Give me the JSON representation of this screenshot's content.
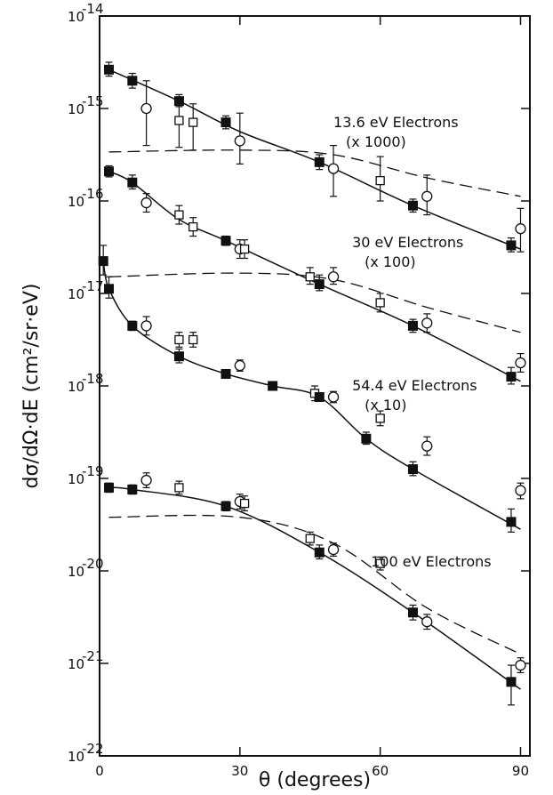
{
  "chart_data": {
    "type": "scatter",
    "xlabel": "θ (degrees)",
    "ylabel": "dσ/dΩ·dE (cm²/sr·eV)",
    "xlim": [
      0,
      92
    ],
    "ylim_exponent": [
      -22,
      -14
    ],
    "log_y": true,
    "grid": false,
    "x_ticks": [
      {
        "value": 0,
        "label": "0"
      },
      {
        "value": 30,
        "label": "30"
      },
      {
        "value": 60,
        "label": "60"
      },
      {
        "value": 90,
        "label": "90"
      }
    ],
    "y_ticks": [
      {
        "exp": -14,
        "base": "10",
        "sup": "-14"
      },
      {
        "exp": -15,
        "base": "10",
        "sup": "-15"
      },
      {
        "exp": -16,
        "base": "10",
        "sup": "-16"
      },
      {
        "exp": -17,
        "base": "10",
        "sup": "-17"
      },
      {
        "exp": -18,
        "base": "10",
        "sup": "-18"
      },
      {
        "exp": -19,
        "base": "10",
        "sup": "-19"
      },
      {
        "exp": -20,
        "base": "10",
        "sup": "-20"
      },
      {
        "exp": -21,
        "base": "10",
        "sup": "-21"
      },
      {
        "exp": -22,
        "base": "10",
        "sup": "-22"
      }
    ],
    "series": [
      {
        "label_lines": [
          "13.6 eV Electrons",
          "(x 1000)"
        ],
        "label_at": {
          "theta": 50,
          "exp": -15.2
        },
        "filled_squares": [
          {
            "x": 2,
            "y": -14.58,
            "lo": -14.65,
            "hi": -14.5
          },
          {
            "x": 7,
            "y": -14.7,
            "lo": -14.78,
            "hi": -14.62
          },
          {
            "x": 17,
            "y": -14.92,
            "lo": -14.98,
            "hi": -14.85
          },
          {
            "x": 27,
            "y": -15.15,
            "lo": -15.22,
            "hi": -15.08
          },
          {
            "x": 47,
            "y": -15.58,
            "lo": -15.66,
            "hi": -15.5
          },
          {
            "x": 67,
            "y": -16.05,
            "lo": -16.12,
            "hi": -15.98
          },
          {
            "x": 88,
            "y": -16.48,
            "lo": -16.55,
            "hi": -16.4
          }
        ],
        "open_circles": [
          {
            "x": 10,
            "y": -15.0,
            "lo": -15.4,
            "hi": -14.7
          },
          {
            "x": 30,
            "y": -15.35,
            "lo": -15.6,
            "hi": -15.05
          },
          {
            "x": 50,
            "y": -15.65,
            "lo": -15.95,
            "hi": -15.4
          },
          {
            "x": 70,
            "y": -15.95,
            "lo": -16.15,
            "hi": -15.72
          },
          {
            "x": 90,
            "y": -16.3,
            "lo": -16.55,
            "hi": -16.08
          }
        ],
        "open_squares": [
          {
            "x": 17,
            "y": -15.13,
            "lo": -15.42,
            "hi": -14.95
          },
          {
            "x": 20,
            "y": -15.15,
            "lo": -15.45,
            "hi": -14.95
          },
          {
            "x": 60,
            "y": -15.78,
            "lo": -16.0,
            "hi": -15.52
          }
        ],
        "fit_curve": [
          {
            "x": 2,
            "y": -14.58
          },
          {
            "x": 17,
            "y": -14.92
          },
          {
            "x": 30,
            "y": -15.25
          },
          {
            "x": 47,
            "y": -15.58
          },
          {
            "x": 67,
            "y": -16.05
          },
          {
            "x": 90,
            "y": -16.52
          }
        ],
        "theory_curve": [
          {
            "x": 2,
            "y": -15.47
          },
          {
            "x": 30,
            "y": -15.45
          },
          {
            "x": 50,
            "y": -15.5
          },
          {
            "x": 70,
            "y": -15.75
          },
          {
            "x": 90,
            "y": -15.95
          }
        ]
      },
      {
        "label_lines": [
          "30 eV Electrons",
          "(x 100)"
        ],
        "label_at": {
          "theta": 54,
          "exp": -16.5
        },
        "filled_squares": [
          {
            "x": 2,
            "y": -15.68,
            "lo": -15.74,
            "hi": -15.62
          },
          {
            "x": 7,
            "y": -15.8,
            "lo": -15.87,
            "hi": -15.72
          },
          {
            "x": 27,
            "y": -16.43,
            "lo": -16.48,
            "hi": -16.38
          },
          {
            "x": 47,
            "y": -16.9,
            "lo": -16.97,
            "hi": -16.8
          },
          {
            "x": 67,
            "y": -17.35,
            "lo": -17.42,
            "hi": -17.28
          },
          {
            "x": 88,
            "y": -17.9,
            "lo": -17.98,
            "hi": -17.8
          }
        ],
        "open_circles": [
          {
            "x": 10,
            "y": -16.02,
            "lo": -16.12,
            "hi": -15.92
          },
          {
            "x": 30,
            "y": -16.52,
            "lo": -16.62,
            "hi": -16.42
          },
          {
            "x": 50,
            "y": -16.82,
            "lo": -16.9,
            "hi": -16.72
          },
          {
            "x": 70,
            "y": -17.32,
            "lo": -17.42,
            "hi": -17.22
          },
          {
            "x": 90,
            "y": -17.75,
            "lo": -17.85,
            "hi": -17.65
          }
        ],
        "open_squares": [
          {
            "x": 17,
            "y": -16.15,
            "lo": -16.25,
            "hi": -16.05
          },
          {
            "x": 20,
            "y": -16.28,
            "lo": -16.38,
            "hi": -16.18
          },
          {
            "x": 31,
            "y": -16.52,
            "lo": -16.62,
            "hi": -16.42
          },
          {
            "x": 45,
            "y": -16.82,
            "lo": -16.9,
            "hi": -16.72
          },
          {
            "x": 60,
            "y": -17.1,
            "lo": -17.2,
            "hi": -17.0
          }
        ],
        "fit_curve": [
          {
            "x": 2,
            "y": -15.68
          },
          {
            "x": 7,
            "y": -15.8
          },
          {
            "x": 17,
            "y": -16.2
          },
          {
            "x": 27,
            "y": -16.43
          },
          {
            "x": 47,
            "y": -16.9
          },
          {
            "x": 67,
            "y": -17.35
          },
          {
            "x": 90,
            "y": -17.95
          }
        ],
        "theory_curve": [
          {
            "x": 2,
            "y": -16.82
          },
          {
            "x": 30,
            "y": -16.78
          },
          {
            "x": 50,
            "y": -16.85
          },
          {
            "x": 70,
            "y": -17.15
          },
          {
            "x": 90,
            "y": -17.42
          }
        ]
      },
      {
        "label_lines": [
          "54.4 eV Electrons",
          "(x 10)"
        ],
        "label_at": {
          "theta": 54,
          "exp": -18.05
        },
        "filled_squares": [
          {
            "x": 0.8,
            "y": -16.65,
            "lo": -16.8,
            "hi": -16.48
          },
          {
            "x": 2,
            "y": -16.95,
            "lo": -17.05,
            "hi": -16.82
          },
          {
            "x": 7,
            "y": -17.35,
            "lo": -17.4,
            "hi": -17.3
          },
          {
            "x": 17,
            "y": -17.68,
            "lo": -17.75,
            "hi": -17.6
          },
          {
            "x": 27,
            "y": -17.87,
            "lo": -17.9,
            "hi": -17.83
          },
          {
            "x": 37,
            "y": -18.0,
            "lo": -18.03,
            "hi": -17.97
          },
          {
            "x": 47,
            "y": -18.12,
            "lo": -18.16,
            "hi": -18.08
          },
          {
            "x": 57,
            "y": -18.57,
            "lo": -18.63,
            "hi": -18.5
          },
          {
            "x": 67,
            "y": -18.9,
            "lo": -18.97,
            "hi": -18.82
          },
          {
            "x": 88,
            "y": -19.47,
            "lo": -19.58,
            "hi": -19.33
          }
        ],
        "open_circles": [
          {
            "x": 10,
            "y": -17.35,
            "lo": -17.45,
            "hi": -17.25
          },
          {
            "x": 30,
            "y": -17.78,
            "lo": -17.84,
            "hi": -17.72
          },
          {
            "x": 50,
            "y": -18.12,
            "lo": -18.18,
            "hi": -18.06
          },
          {
            "x": 70,
            "y": -18.65,
            "lo": -18.75,
            "hi": -18.55
          },
          {
            "x": 90,
            "y": -19.13,
            "lo": -19.22,
            "hi": -19.05
          }
        ],
        "open_squares": [
          {
            "x": 17,
            "y": -17.5,
            "lo": -17.58,
            "hi": -17.42
          },
          {
            "x": 20,
            "y": -17.5,
            "lo": -17.58,
            "hi": -17.42
          },
          {
            "x": 46,
            "y": -18.08,
            "lo": -18.16,
            "hi": -18.0
          },
          {
            "x": 60,
            "y": -18.35,
            "lo": -18.43,
            "hi": -18.27
          }
        ],
        "fit_curve": [
          {
            "x": 0.8,
            "y": -16.65
          },
          {
            "x": 2,
            "y": -16.95
          },
          {
            "x": 7,
            "y": -17.35
          },
          {
            "x": 17,
            "y": -17.68
          },
          {
            "x": 27,
            "y": -17.87
          },
          {
            "x": 37,
            "y": -18.0
          },
          {
            "x": 47,
            "y": -18.12
          },
          {
            "x": 57,
            "y": -18.57
          },
          {
            "x": 67,
            "y": -18.9
          },
          {
            "x": 90,
            "y": -19.55
          }
        ],
        "theory_curve": []
      },
      {
        "label_lines": [
          "100 eV Electrons"
        ],
        "label_at": {
          "theta": 58,
          "exp": -19.95
        },
        "filled_squares": [
          {
            "x": 2,
            "y": -19.1,
            "lo": -19.15,
            "hi": -19.05
          },
          {
            "x": 7,
            "y": -19.12,
            "lo": -19.17,
            "hi": -19.07
          },
          {
            "x": 27,
            "y": -19.3,
            "lo": -19.35,
            "hi": -19.25
          },
          {
            "x": 47,
            "y": -19.8,
            "lo": -19.87,
            "hi": -19.72
          },
          {
            "x": 67,
            "y": -20.45,
            "lo": -20.53,
            "hi": -20.37
          },
          {
            "x": 88,
            "y": -21.2,
            "lo": -21.45,
            "hi": -21.02
          }
        ],
        "open_circles": [
          {
            "x": 10,
            "y": -19.02,
            "lo": -19.1,
            "hi": -18.94
          },
          {
            "x": 30,
            "y": -19.25,
            "lo": -19.33,
            "hi": -19.17
          },
          {
            "x": 50,
            "y": -19.77,
            "lo": -19.84,
            "hi": -19.7
          },
          {
            "x": 70,
            "y": -20.55,
            "lo": -20.63,
            "hi": -20.47
          },
          {
            "x": 90,
            "y": -21.02,
            "lo": -21.1,
            "hi": -20.94
          }
        ],
        "open_squares": [
          {
            "x": 17,
            "y": -19.1,
            "lo": -19.17,
            "hi": -19.03
          },
          {
            "x": 31,
            "y": -19.27,
            "lo": -19.35,
            "hi": -19.19
          },
          {
            "x": 45,
            "y": -19.65,
            "lo": -19.72,
            "hi": -19.58
          },
          {
            "x": 60,
            "y": -19.92,
            "lo": -19.99,
            "hi": -19.85
          }
        ],
        "fit_curve": [
          {
            "x": 2,
            "y": -19.1
          },
          {
            "x": 7,
            "y": -19.12
          },
          {
            "x": 27,
            "y": -19.3
          },
          {
            "x": 47,
            "y": -19.8
          },
          {
            "x": 67,
            "y": -20.45
          },
          {
            "x": 90,
            "y": -21.28
          }
        ],
        "theory_curve": [
          {
            "x": 2,
            "y": -19.42
          },
          {
            "x": 30,
            "y": -19.42
          },
          {
            "x": 50,
            "y": -19.7
          },
          {
            "x": 70,
            "y": -20.4
          },
          {
            "x": 90,
            "y": -20.9
          }
        ]
      }
    ]
  }
}
